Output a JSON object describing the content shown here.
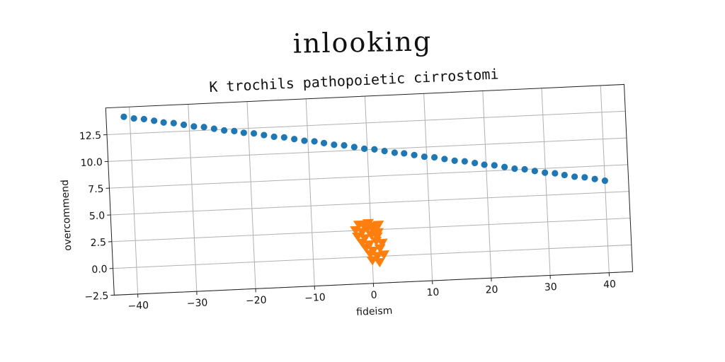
{
  "suptitle": "inlooking",
  "chart_data": {
    "type": "scatter",
    "title": "K trochils pathopoietic cirrostomi",
    "xlabel": "fideism",
    "ylabel": "overcommend",
    "xlim": [
      -44,
      44
    ],
    "ylim": [
      -2.5,
      15
    ],
    "xticks": [
      -40,
      -30,
      -20,
      -10,
      0,
      10,
      20,
      30,
      40
    ],
    "yticks": [
      -2.5,
      0.0,
      2.5,
      5.0,
      7.5,
      10.0,
      12.5
    ],
    "xtick_labels": [
      "−40",
      "−30",
      "−20",
      "−10",
      "0",
      "10",
      "20",
      "30",
      "40"
    ],
    "ytick_labels": [
      "−2.5",
      "0.0",
      "2.5",
      "5.0",
      "7.5",
      "10.0",
      "12.5"
    ],
    "grid": true,
    "legend": "none",
    "series": [
      {
        "marker": "circle",
        "color": "#1f77b4",
        "x": [
          -41.0,
          -39.3,
          -37.6,
          -35.9,
          -34.3,
          -32.6,
          -30.9,
          -29.2,
          -27.5,
          -25.8,
          -24.1,
          -22.4,
          -20.8,
          -19.1,
          -17.4,
          -15.7,
          -14.0,
          -12.3,
          -10.6,
          -8.9,
          -7.3,
          -5.6,
          -3.9,
          -2.2,
          -0.5,
          1.2,
          2.9,
          4.6,
          6.2,
          7.9,
          9.6,
          11.3,
          13.0,
          14.7,
          16.4,
          18.1,
          19.7,
          21.4,
          23.1,
          24.8,
          26.5,
          28.2,
          29.9,
          31.6,
          33.2,
          34.9,
          36.6,
          38.3,
          40.0
        ],
        "y": [
          14.1,
          13.9,
          13.8,
          13.6,
          13.4,
          13.3,
          13.1,
          12.9,
          12.8,
          12.6,
          12.4,
          12.3,
          12.1,
          12.0,
          11.8,
          11.6,
          11.5,
          11.3,
          11.1,
          11.0,
          10.8,
          10.6,
          10.5,
          10.3,
          10.1,
          10.0,
          9.8,
          9.6,
          9.5,
          9.3,
          9.1,
          9.0,
          8.8,
          8.6,
          8.5,
          8.3,
          8.1,
          8.0,
          7.8,
          7.6,
          7.5,
          7.3,
          7.1,
          7.0,
          6.8,
          6.6,
          6.5,
          6.3,
          6.1
        ]
      },
      {
        "marker": "triangle-down",
        "color": "#ff7f0e",
        "x": [
          -2.0,
          -1.2,
          -0.4,
          0.5,
          1.3,
          -2.6,
          -1.5,
          -0.6,
          0.4,
          1.2,
          -2.3,
          -1.1,
          0.0,
          1.0,
          -1.6,
          -0.4,
          0.8,
          1.8,
          -1.0,
          0.2,
          1.4,
          -0.3,
          0.9,
          2.0,
          0.0,
          1.2
        ],
        "y": [
          3.1,
          3.0,
          3.2,
          2.9,
          3.0,
          2.6,
          2.4,
          2.7,
          2.5,
          2.3,
          2.0,
          1.8,
          2.1,
          1.9,
          1.4,
          1.2,
          1.5,
          1.3,
          0.9,
          0.6,
          0.8,
          0.3,
          0.1,
          0.2,
          -0.3,
          -0.5
        ]
      }
    ]
  }
}
